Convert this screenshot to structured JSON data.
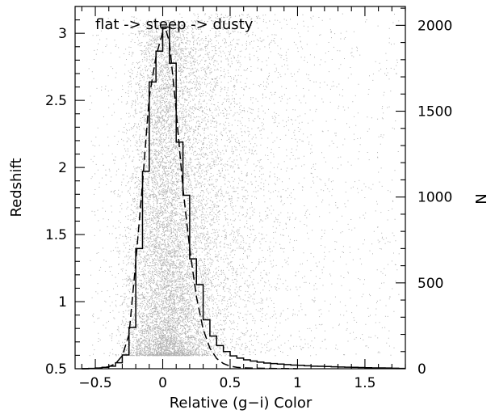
{
  "chart_data": {
    "type": "scatter",
    "annotation": "flat -> steep -> dusty",
    "xlabel": "Relative (g−i) Color",
    "ylabel_left": "Redshift",
    "ylabel_right": "N",
    "xlim": [
      -0.65,
      1.8
    ],
    "ylim_left": [
      0.5,
      3.2
    ],
    "ylim_right": [
      0,
      2110
    ],
    "x_ticks": [
      -0.5,
      0,
      0.5,
      1,
      1.5
    ],
    "x_tick_labels": [
      "−0.5",
      "0",
      "0.5",
      "1",
      "1.5"
    ],
    "y_left_ticks": [
      0.5,
      1,
      1.5,
      2,
      2.5,
      3
    ],
    "y_left_tick_labels": [
      "0.5",
      "1",
      "1.5",
      "2",
      "2.5",
      "3"
    ],
    "y_right_ticks": [
      0,
      500,
      1000,
      1500,
      2000
    ],
    "y_right_tick_labels": [
      "0",
      "500",
      "1000",
      "1500",
      "2000"
    ],
    "grid": false,
    "scatter_color": "#b0b0b0",
    "scatter_description": "dense cloud of quasar points, concentrated near relative color 0",
    "histogram_solid": {
      "bin_width": 0.05,
      "bin_starts": [
        -0.6,
        -0.55,
        -0.5,
        -0.45,
        -0.4,
        -0.35,
        -0.3,
        -0.25,
        -0.2,
        -0.15,
        -0.1,
        -0.05,
        0,
        0.05,
        0.1,
        0.15,
        0.2,
        0.25,
        0.3,
        0.35,
        0.4,
        0.45,
        0.5,
        0.55,
        0.6,
        0.65,
        0.7,
        0.75,
        0.8,
        0.85,
        0.9,
        0.95,
        1,
        1.05,
        1.1,
        1.15,
        1.2,
        1.25,
        1.3,
        1.35,
        1.4,
        1.45,
        1.5,
        1.55,
        1.6,
        1.65,
        1.7,
        1.75
      ],
      "counts": [
        0,
        2,
        4,
        8,
        15,
        35,
        80,
        240,
        700,
        1150,
        1670,
        1850,
        1990,
        1780,
        1320,
        1010,
        640,
        490,
        285,
        190,
        135,
        100,
        75,
        62,
        52,
        45,
        38,
        33,
        30,
        27,
        24,
        21,
        20,
        17,
        15,
        14,
        13,
        11,
        10,
        9,
        8,
        7,
        6,
        5,
        5,
        4,
        3,
        2
      ]
    },
    "histogram_dashed": {
      "x": [
        -0.6,
        -0.5,
        -0.45,
        -0.4,
        -0.35,
        -0.3,
        -0.25,
        -0.2,
        -0.15,
        -0.1,
        -0.05,
        0,
        0.025,
        0.05,
        0.1,
        0.15,
        0.2,
        0.25,
        0.3,
        0.35,
        0.4,
        0.45,
        0.5,
        0.55,
        0.6,
        0.7,
        0.8,
        0.9,
        1.0
      ],
      "y": [
        0,
        2,
        5,
        12,
        30,
        75,
        200,
        620,
        1080,
        1580,
        1820,
        1960,
        1970,
        1900,
        1500,
        1050,
        700,
        420,
        230,
        120,
        60,
        30,
        15,
        8,
        5,
        3,
        2,
        1,
        0
      ]
    }
  }
}
